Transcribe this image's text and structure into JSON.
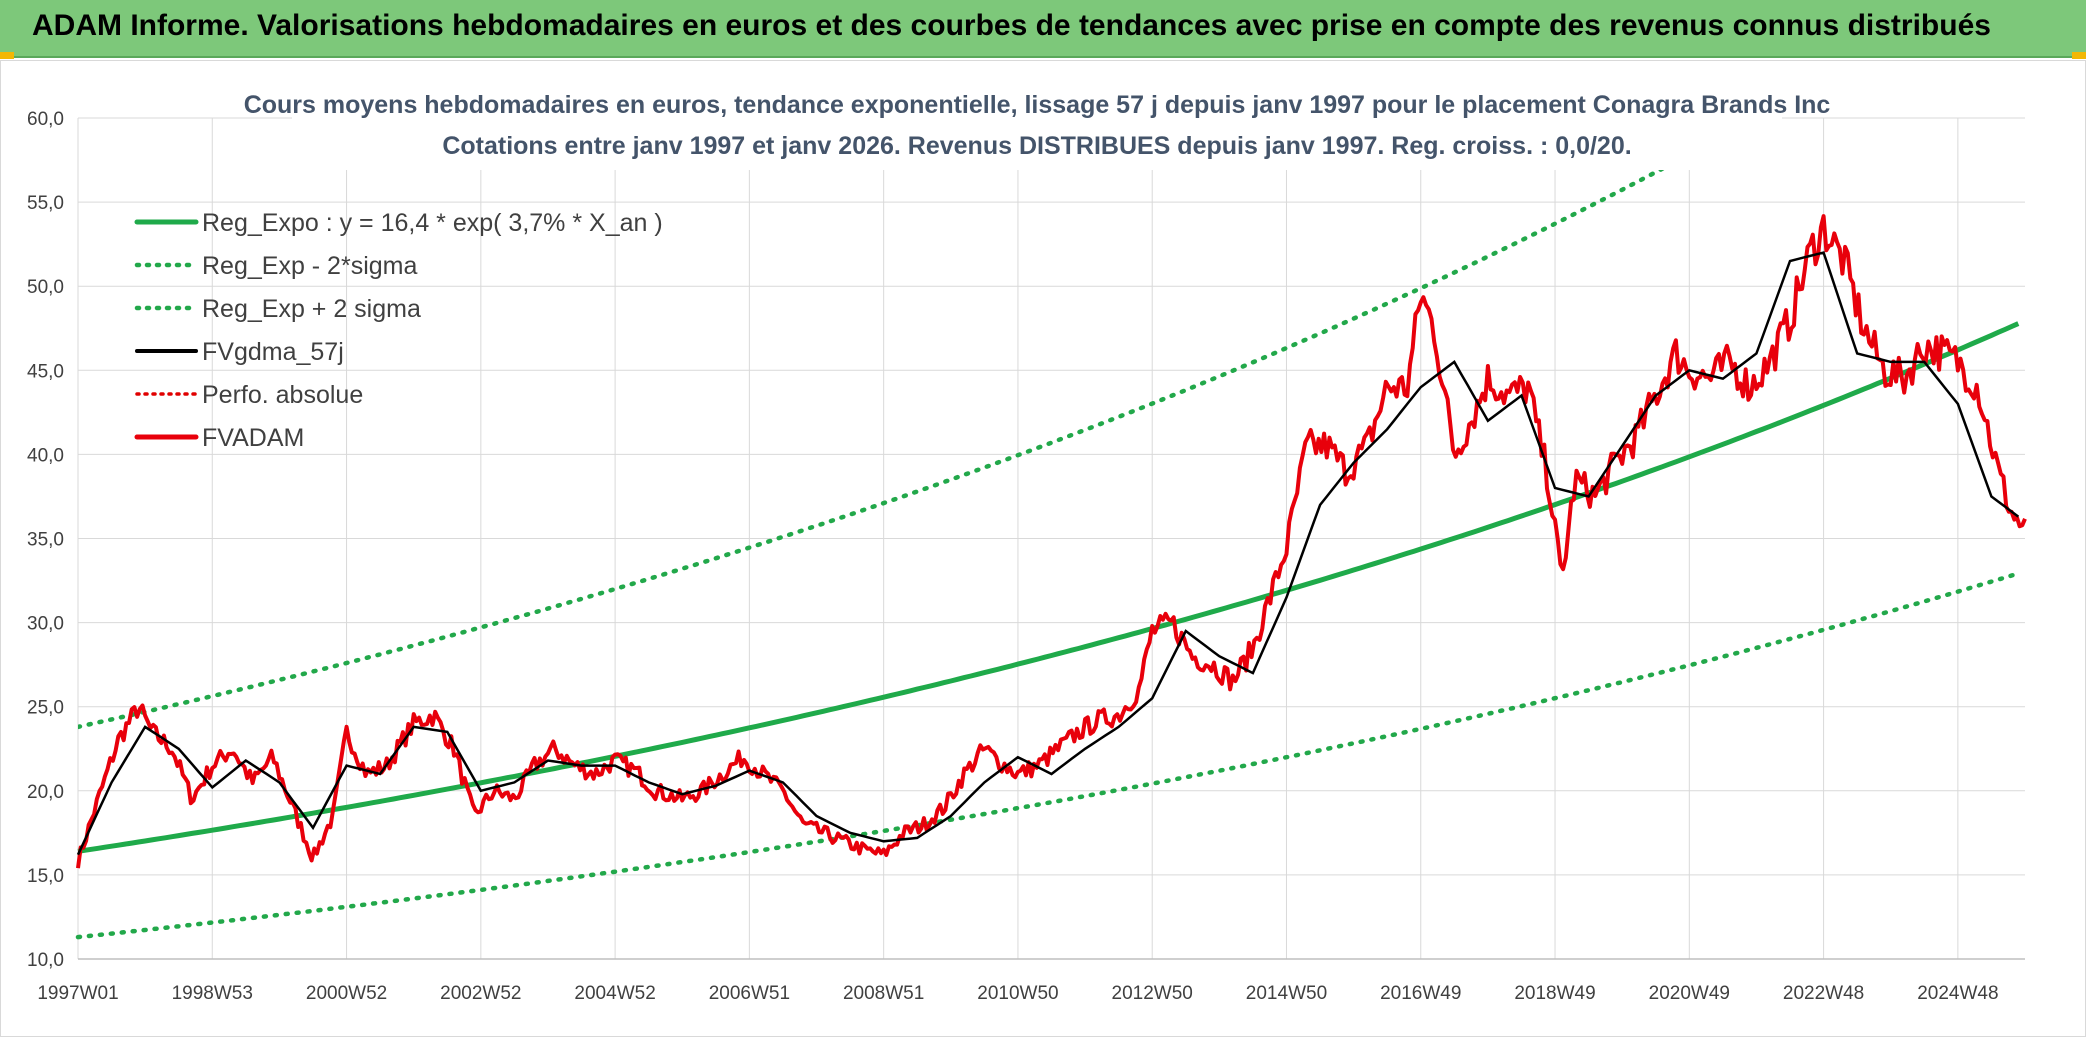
{
  "header": {
    "title": "ADAM Informe. Valorisations hebdomadaires en euros et des courbes de tendances avec prise en compte des revenus connus distribués"
  },
  "colors": {
    "banner": "#7dc87a",
    "trend": "#1faa4a",
    "sigma": "#22a84a",
    "fvgdma": "#000000",
    "perf": "#e00000",
    "fvadam": "#e8000b",
    "title": "#44546a"
  },
  "chart_data": {
    "type": "line",
    "title": [
      "Cours moyens hebdomadaires en euros, tendance exponentielle, lissage 57 j depuis janv 1997 pour le placement Conagra Brands Inc",
      "Cotations entre janv 1997 et janv 2026. Revenus DISTRIBUES depuis janv 1997. Reg. croiss. : 0,0/20."
    ],
    "x_range": [
      0,
      29
    ],
    "ylim": [
      10,
      60
    ],
    "y_ticks": [
      "10,0",
      "15,0",
      "20,0",
      "25,0",
      "30,0",
      "35,0",
      "40,0",
      "45,0",
      "50,0",
      "55,0",
      "60,0"
    ],
    "x_ticks": [
      {
        "label": "1997W01",
        "t": 0
      },
      {
        "label": "1998W53",
        "t": 2
      },
      {
        "label": "2000W52",
        "t": 4
      },
      {
        "label": "2002W52",
        "t": 6
      },
      {
        "label": "2004W52",
        "t": 8
      },
      {
        "label": "2006W51",
        "t": 10
      },
      {
        "label": "2008W51",
        "t": 12
      },
      {
        "label": "2010W50",
        "t": 14
      },
      {
        "label": "2012W50",
        "t": 16
      },
      {
        "label": "2014W50",
        "t": 18
      },
      {
        "label": "2016W49",
        "t": 20
      },
      {
        "label": "2018W49",
        "t": 22
      },
      {
        "label": "2020W49",
        "t": 24
      },
      {
        "label": "2022W48",
        "t": 26
      },
      {
        "label": "2024W48",
        "t": 28
      }
    ],
    "legend": [
      {
        "label": "Reg_Expo : y = 16,4 * exp( 3,7% *  X_an )",
        "style": "solid-green"
      },
      {
        "label": "Reg_Exp - 2*sigma",
        "style": "dotted-green"
      },
      {
        "label": "Reg_Exp + 2 sigma",
        "style": "dotted-green"
      },
      {
        "label": "FVgdma_57j",
        "style": "solid-black"
      },
      {
        "label": "Perfo. absolue",
        "style": "dotted-red"
      },
      {
        "label": "FVADAM",
        "style": "solid-red"
      }
    ],
    "series": [
      {
        "name": "Reg_Expo",
        "a": 16.4,
        "rate": 0.037
      },
      {
        "name": "Reg_Exp - 2*sigma",
        "a": 11.3,
        "rate": 0.037
      },
      {
        "name": "Reg_Exp + 2 sigma",
        "a": 23.8,
        "rate": 0.037
      },
      {
        "name": "FVADAM",
        "x": [
          0,
          0.3,
          0.6,
          0.9,
          1.1,
          1.4,
          1.7,
          2.0,
          2.3,
          2.6,
          2.9,
          3.2,
          3.5,
          3.8,
          4.0,
          4.3,
          4.6,
          5.0,
          5.3,
          5.6,
          5.9,
          6.2,
          6.5,
          6.8,
          7.1,
          7.4,
          7.7,
          8.0,
          8.3,
          8.6,
          9.0,
          9.3,
          9.6,
          9.9,
          10.2,
          10.5,
          10.8,
          11.1,
          11.4,
          11.7,
          12.0,
          12.3,
          12.6,
          12.9,
          13.2,
          13.5,
          13.8,
          14.0,
          14.3,
          14.6,
          14.9,
          15.2,
          15.5,
          15.8,
          16.0,
          16.3,
          16.6,
          16.9,
          17.2,
          17.5,
          17.8,
          18.0,
          18.3,
          18.6,
          18.9,
          19.2,
          19.5,
          19.8,
          20.0,
          20.2,
          20.5,
          20.8,
          21.0,
          21.3,
          21.6,
          21.9,
          22.1,
          22.3,
          22.6,
          22.9,
          23.2,
          23.5,
          23.8,
          24.0,
          24.3,
          24.6,
          24.9,
          25.2,
          25.5,
          25.8,
          26.0,
          26.3,
          26.6,
          26.9,
          27.2,
          27.5,
          27.8,
          28.0,
          28.3,
          28.6,
          28.8,
          29.0
        ],
        "values": [
          15.8,
          19.5,
          23.0,
          25.0,
          23.5,
          22.5,
          19.5,
          21.5,
          22.5,
          20.5,
          22.0,
          19.0,
          16.0,
          18.5,
          23.5,
          21.0,
          21.5,
          24.0,
          24.5,
          22.5,
          18.5,
          20.0,
          19.5,
          21.5,
          22.5,
          21.5,
          21.0,
          21.8,
          21.2,
          20.0,
          19.5,
          20.0,
          21.0,
          22.0,
          21.0,
          20.0,
          18.0,
          17.5,
          17.0,
          16.5,
          16.2,
          17.5,
          18.0,
          19.0,
          21.0,
          22.5,
          21.5,
          21.0,
          21.5,
          22.5,
          23.5,
          24.2,
          24.5,
          26.0,
          29.5,
          30.0,
          28.0,
          27.5,
          26.5,
          28.5,
          32.0,
          34.5,
          40.5,
          40.5,
          39.0,
          40.5,
          44.0,
          44.0,
          49.5,
          47.5,
          40.0,
          42.5,
          44.5,
          43.5,
          44.0,
          38.5,
          32.5,
          38.5,
          37.5,
          39.5,
          41.0,
          43.5,
          46.0,
          45.0,
          44.5,
          45.5,
          44.0,
          45.5,
          48.0,
          52.0,
          53.5,
          51.5,
          47.5,
          45.0,
          44.5,
          46.5,
          46.0,
          45.5,
          44.0,
          39.0,
          36.5,
          35.5
        ]
      },
      {
        "name": "FVgdma_57j",
        "x": [
          0,
          0.5,
          1.0,
          1.5,
          2.0,
          2.5,
          3.0,
          3.5,
          4.0,
          4.5,
          5.0,
          5.5,
          6.0,
          6.5,
          7.0,
          7.5,
          8.0,
          8.5,
          9.0,
          9.5,
          10.0,
          10.5,
          11.0,
          11.5,
          12.0,
          12.5,
          13.0,
          13.5,
          14.0,
          14.5,
          15.0,
          15.5,
          16.0,
          16.5,
          17.0,
          17.5,
          18.0,
          18.5,
          19.0,
          19.5,
          20.0,
          20.5,
          21.0,
          21.5,
          22.0,
          22.5,
          23.0,
          23.5,
          24.0,
          24.5,
          25.0,
          25.5,
          26.0,
          26.5,
          27.0,
          27.5,
          28.0,
          28.5,
          29.0
        ],
        "values": [
          16.2,
          20.5,
          23.8,
          22.5,
          20.2,
          21.8,
          20.5,
          17.8,
          21.5,
          21.0,
          23.8,
          23.5,
          20.0,
          20.5,
          21.8,
          21.5,
          21.5,
          20.5,
          19.8,
          20.3,
          21.2,
          20.5,
          18.5,
          17.5,
          17.0,
          17.2,
          18.5,
          20.5,
          22.0,
          21.0,
          22.5,
          23.8,
          25.5,
          29.5,
          28.0,
          27.0,
          31.5,
          37.0,
          39.5,
          41.5,
          44.0,
          45.5,
          42.0,
          43.5,
          38.0,
          37.5,
          40.5,
          43.5,
          45.0,
          44.5,
          46.0,
          51.5,
          52.0,
          46.0,
          45.5,
          45.5,
          43.0,
          37.5,
          36.0
        ]
      }
    ]
  }
}
